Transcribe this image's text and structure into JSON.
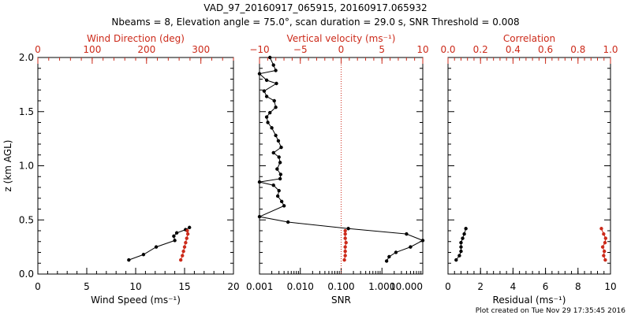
{
  "title": {
    "line1": "VAD_97_20160917_065915, 20160917.065932",
    "line2": "Nbeams = 8, Elevation angle = 75.0°, scan duration = 29.0 s, SNR Threshold = 0.008"
  },
  "footer": "Plot created on Tue Nov 29 17:35:45 2016",
  "colors": {
    "black": "#000000",
    "red": "#cc2a1a"
  },
  "chart_data": [
    {
      "type": "line",
      "panel": "wind",
      "ylabel": "z (km AGL)",
      "ylim": [
        0,
        2
      ],
      "yticks": [
        0.0,
        0.5,
        1.0,
        1.5,
        2.0
      ],
      "ytick_labels": [
        "0.0",
        "0.5",
        "1.0",
        "1.5",
        "2.0"
      ],
      "bottom_axis": {
        "label": "Wind Speed (ms⁻¹)",
        "range": [
          0,
          20
        ],
        "ticks": [
          0,
          5,
          10,
          15,
          20
        ],
        "tick_labels": [
          "0",
          "5",
          "10",
          "15",
          "20"
        ]
      },
      "top_axis": {
        "label": "Wind Direction (deg)",
        "range": [
          0,
          360
        ],
        "ticks": [
          0,
          100,
          200,
          300
        ],
        "tick_labels": [
          "0",
          "100",
          "200",
          "300"
        ]
      },
      "series": [
        {
          "axis": "bottom",
          "color": "#000000",
          "x": [
            9.3,
            10.8,
            12.1,
            14.0,
            13.9,
            14.2,
            15.1,
            15.5
          ],
          "y": [
            0.13,
            0.18,
            0.25,
            0.31,
            0.35,
            0.38,
            0.41,
            0.43
          ]
        },
        {
          "axis": "top",
          "color": "#cc2a1a",
          "x": [
            263,
            266,
            268,
            270,
            272,
            274,
            276,
            275
          ],
          "y": [
            0.13,
            0.17,
            0.21,
            0.25,
            0.29,
            0.33,
            0.37,
            0.4
          ]
        }
      ]
    },
    {
      "type": "line",
      "panel": "snr",
      "ylim": [
        0,
        2
      ],
      "bottom_axis": {
        "label": "SNR",
        "scale": "log",
        "range": [
          0.001,
          10
        ],
        "ticks": [
          0.001,
          0.01,
          0.1,
          1,
          10
        ],
        "tick_labels": [
          "0.001",
          "0.010",
          "0.100",
          "1.000",
          "10.000"
        ]
      },
      "top_axis": {
        "label": "Vertical velocity (ms⁻¹)",
        "range": [
          -10,
          10
        ],
        "ticks": [
          -10,
          -5,
          0,
          5,
          10
        ],
        "tick_labels": [
          "−10",
          "−5",
          "0",
          "5",
          "10"
        ],
        "reference_line": 0
      },
      "series": [
        {
          "axis": "bottom",
          "color": "#000000",
          "x": [
            1.3,
            1.5,
            2.2,
            5.0,
            10,
            4.0,
            0.15,
            0.005,
            0.001,
            0.004,
            0.0035,
            0.0028,
            0.003,
            0.0022,
            0.001,
            0.0032,
            0.0033,
            0.0027,
            0.0032,
            0.003,
            0.0022,
            0.0034,
            0.0029,
            0.0025,
            0.002,
            0.0016,
            0.0015,
            0.0018,
            0.0025,
            0.0023,
            0.0015,
            0.0013,
            0.0026,
            0.0015,
            0.001,
            0.0025,
            0.0022,
            0.0018
          ],
          "y": [
            0.12,
            0.16,
            0.2,
            0.25,
            0.31,
            0.37,
            0.42,
            0.48,
            0.53,
            0.63,
            0.67,
            0.72,
            0.77,
            0.82,
            0.85,
            0.88,
            0.92,
            0.97,
            1.03,
            1.08,
            1.12,
            1.17,
            1.23,
            1.28,
            1.35,
            1.4,
            1.45,
            1.49,
            1.54,
            1.6,
            1.64,
            1.69,
            1.76,
            1.79,
            1.85,
            1.88,
            1.93,
            2.0
          ]
        },
        {
          "axis": "top",
          "color": "#cc2a1a",
          "x": [
            0.4,
            0.5,
            0.5,
            0.5,
            0.6,
            0.5,
            0.5,
            0.5
          ],
          "y": [
            0.13,
            0.17,
            0.21,
            0.25,
            0.29,
            0.33,
            0.37,
            0.4
          ]
        }
      ]
    },
    {
      "type": "line",
      "panel": "residual",
      "ylim": [
        0,
        2
      ],
      "bottom_axis": {
        "label": "Residual (ms⁻¹)",
        "range": [
          0,
          10
        ],
        "ticks": [
          0,
          2,
          4,
          6,
          8,
          10
        ],
        "tick_labels": [
          "0",
          "2",
          "4",
          "6",
          "8",
          "10"
        ]
      },
      "top_axis": {
        "label": "Correlation",
        "range": [
          0.0,
          1.0
        ],
        "ticks": [
          0.0,
          0.2,
          0.4,
          0.6,
          0.8,
          1.0
        ],
        "tick_labels": [
          "0.0",
          "0.2",
          "0.4",
          "0.6",
          "0.8",
          "1.0"
        ]
      },
      "series": [
        {
          "axis": "bottom",
          "color": "#000000",
          "x": [
            0.5,
            0.7,
            0.8,
            0.8,
            0.8,
            0.9,
            1.0,
            1.1
          ],
          "y": [
            0.13,
            0.17,
            0.21,
            0.25,
            0.29,
            0.33,
            0.37,
            0.42
          ]
        },
        {
          "axis": "top",
          "color": "#cc2a1a",
          "x": [
            0.968,
            0.958,
            0.962,
            0.952,
            0.966,
            0.97,
            0.958,
            0.944
          ],
          "y": [
            0.13,
            0.17,
            0.21,
            0.25,
            0.29,
            0.33,
            0.37,
            0.42
          ]
        }
      ]
    }
  ]
}
